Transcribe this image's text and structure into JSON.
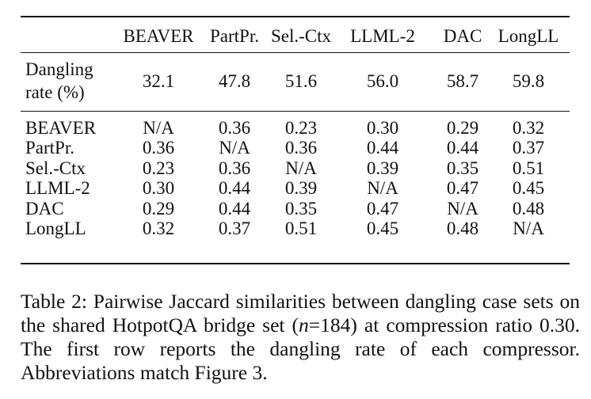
{
  "table": {
    "columns": [
      "BEAVER",
      "PartPr.",
      "Sel.-Ctx",
      "LLML-2",
      "DAC",
      "LongLL"
    ],
    "dangling": {
      "label_line1": "Dangling",
      "label_line2": "rate (%)",
      "values": [
        "32.1",
        "47.8",
        "51.6",
        "56.0",
        "58.7",
        "59.8"
      ]
    },
    "rows": [
      {
        "label": "BEAVER",
        "values": [
          "N/A",
          "0.36",
          "0.23",
          "0.30",
          "0.29",
          "0.32"
        ]
      },
      {
        "label": "PartPr.",
        "values": [
          "0.36",
          "N/A",
          "0.36",
          "0.44",
          "0.44",
          "0.37"
        ]
      },
      {
        "label": "Sel.-Ctx",
        "values": [
          "0.23",
          "0.36",
          "N/A",
          "0.39",
          "0.35",
          "0.51"
        ]
      },
      {
        "label": "LLML-2",
        "values": [
          "0.30",
          "0.44",
          "0.39",
          "N/A",
          "0.47",
          "0.45"
        ]
      },
      {
        "label": "DAC",
        "values": [
          "0.29",
          "0.44",
          "0.35",
          "0.47",
          "N/A",
          "0.48"
        ]
      },
      {
        "label": "LongLL",
        "values": [
          "0.32",
          "0.37",
          "0.51",
          "0.45",
          "0.48",
          "N/A"
        ]
      }
    ]
  },
  "caption": {
    "text_1": "Table 2: Pairwise Jaccard similarities between dangling case sets on the shared HotpotQA bridge set (",
    "n_var": "n",
    "n_eq": "=184) at compression ratio ",
    "ratio": "0.30",
    "text_2": ". The first row reports the dangling rate of each compressor. Abbreviations match Figure 3."
  }
}
